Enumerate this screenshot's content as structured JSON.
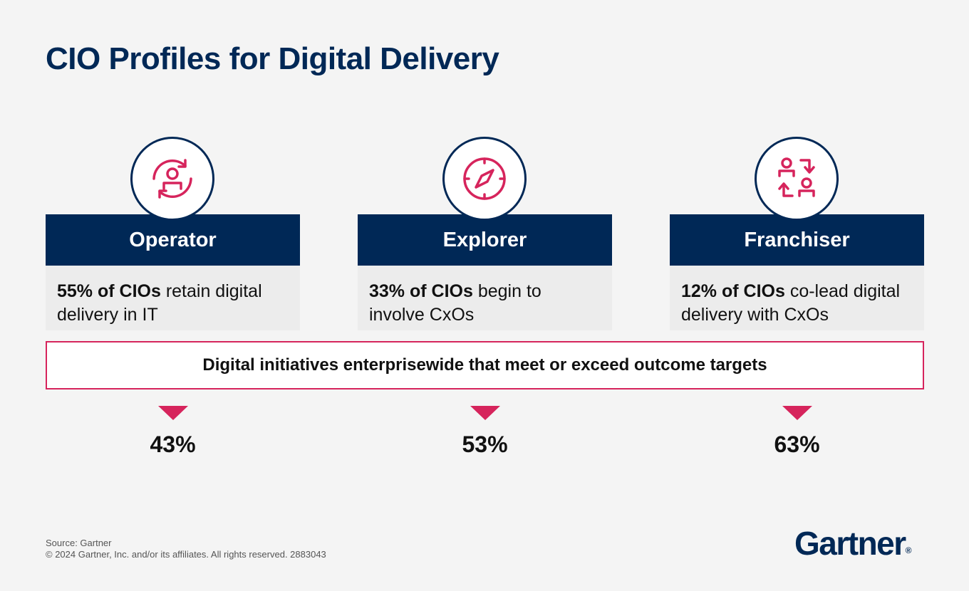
{
  "title": "CIO Profiles for Digital Delivery",
  "profiles": [
    {
      "name": "Operator",
      "icon": "rotating-person-icon",
      "highlight": "55% of CIOs",
      "text": "retain digital delivery in IT",
      "stat": "43%"
    },
    {
      "name": "Explorer",
      "icon": "compass-icon",
      "highlight": "33% of CIOs",
      "text": "begin to involve CxOs",
      "stat": "53%"
    },
    {
      "name": "Franchiser",
      "icon": "exchange-people-icon",
      "highlight": "12% of CIOs",
      "text": "co-lead digital delivery with CxOs",
      "stat": "63%"
    }
  ],
  "banner": "Digital initiatives enterprisewide that meet or exceed outcome targets",
  "footer": {
    "source": "Source: Gartner",
    "copyright": "© 2024 Gartner, Inc. and/or its affiliates. All rights reserved. 2883043"
  },
  "logo": {
    "text": "Gartner",
    "mark": "®"
  },
  "colors": {
    "navy": "#002856",
    "accent": "#d6245c",
    "background": "#f4f4f4"
  }
}
